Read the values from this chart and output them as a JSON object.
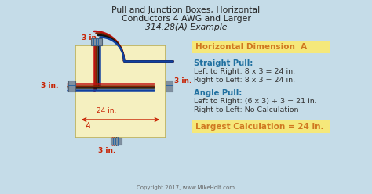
{
  "title_line1": "Pull and Junction Boxes, Horizontal",
  "title_line2": "Conductors 4 AWG and Larger",
  "title_line3": "314.28(A) Example",
  "bg_color": "#c5dce8",
  "box_fill": "#f5f0c0",
  "box_edge": "#b8b060",
  "header_label": "Horizontal Dimension  A",
  "header_bg": "#f5e87a",
  "straight_pull_label": "Straight Pull:",
  "straight_pull_line1": "Left to Right: 8 x 3 = 24 in.",
  "straight_pull_line2": "Right to Left: 8 x 3 = 24 in.",
  "angle_pull_label": "Angle Pull:",
  "angle_pull_line1": "Left to Right: (6 x 3) + 3 = 21 in.",
  "angle_pull_line2": "Right to Left: No Calculation",
  "largest_calc": "Largest Calculation = 24 in.",
  "largest_bg": "#f5e87a",
  "dim_label": "3 in.",
  "dim_A": "24 in.",
  "dim_A_label": "A",
  "copyright": "Copyright 2017, www.MikeHolt.com",
  "label_color_red": "#c82000",
  "label_color_teal": "#2070a0",
  "label_color_orange": "#d07820",
  "label_color_dark": "#333333",
  "label_color_black": "#222222",
  "wire_red": "#c01010",
  "wire_brown": "#802000",
  "wire_black": "#111111",
  "wire_blue": "#1040a0",
  "conn_face": "#8090a0",
  "conn_edge": "#506070",
  "conn_blue": "#2060a0"
}
